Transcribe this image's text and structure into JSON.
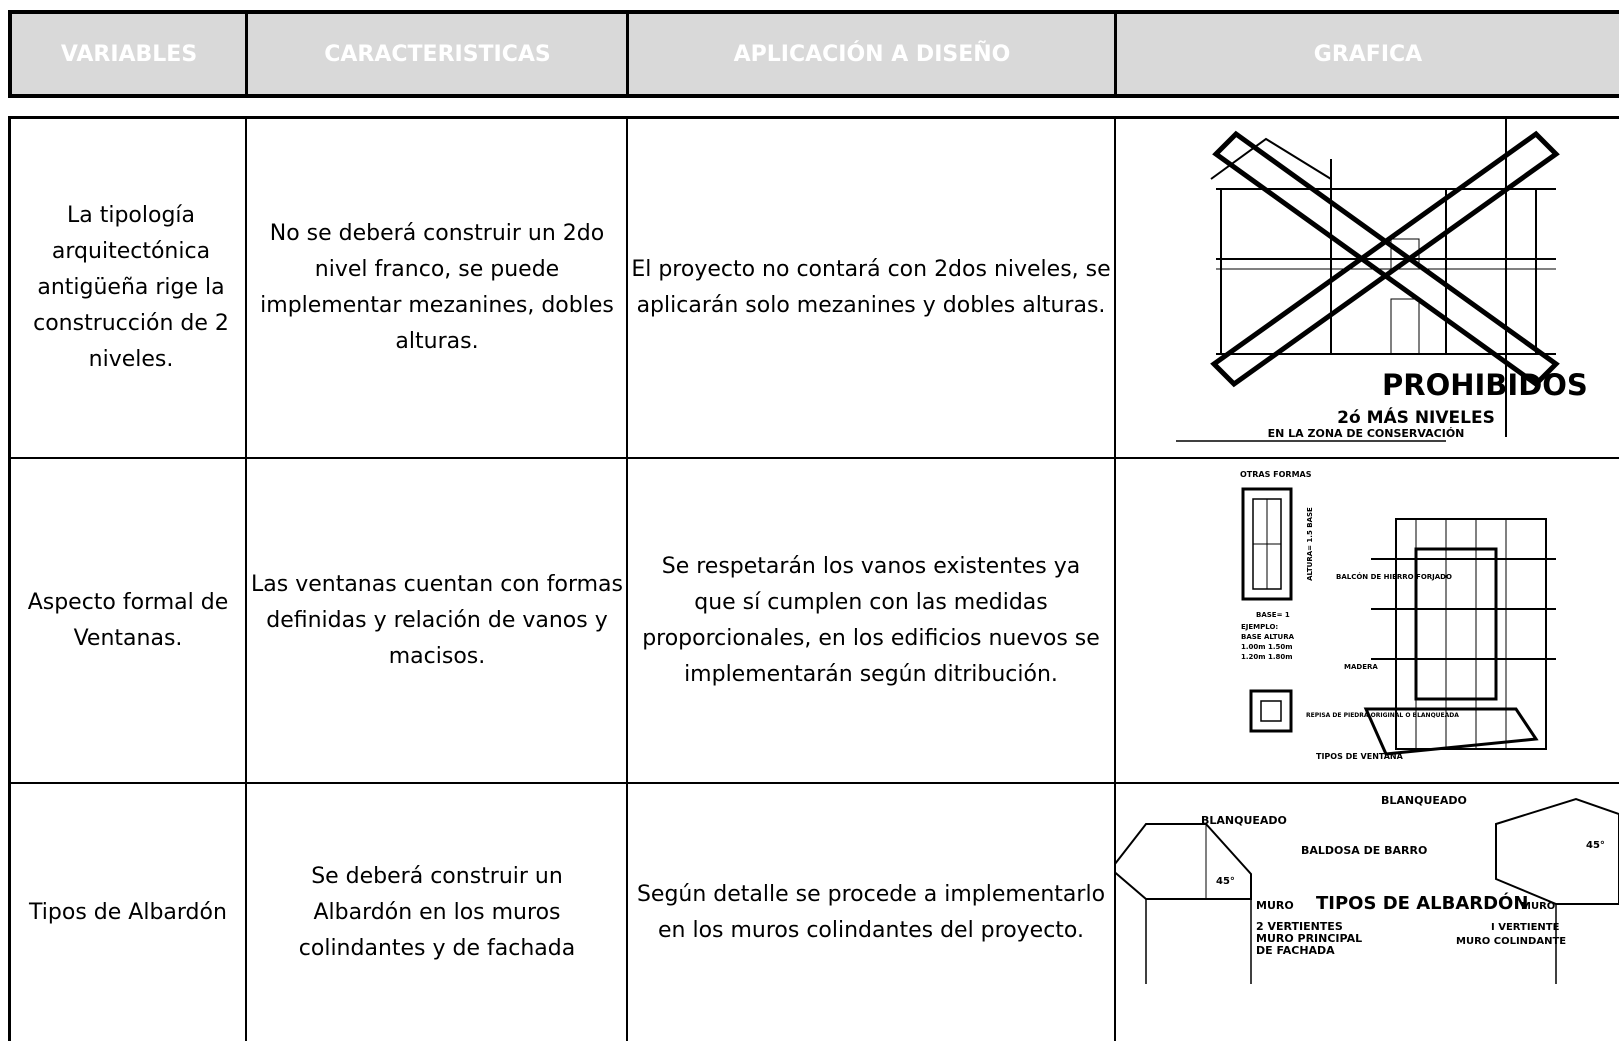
{
  "header": [
    "VARIABLES",
    "CARACTERISTICAS",
    "APLICACIÓN A DISEÑO",
    "GRAFICA"
  ],
  "rows": [
    {
      "variable": "La tipología arquitectónica antigüeña rige la construcción de 2 niveles.",
      "caracteristicas": "No se deberá construir un 2do nivel franco, se puede implementar mezanines, dobles alturas.",
      "aplicacion": "El proyecto no contará con 2dos niveles, se aplicarán solo mezanines y dobles alturas.",
      "grafica": [
        "PROHIBIDOS",
        "2ó MÁS NIVELES",
        "EN LA ZONA DE CONSERVACIÓN"
      ]
    },
    {
      "variable": "Aspecto formal de Ventanas.",
      "caracteristicas": "Las ventanas cuentan con formas definidas y relación de vanos y macisos.",
      "aplicacion": "Se respetarán los vanos existentes ya que sí cumplen con las medidas proporcionales, en los edificios nuevos se implementarán según ditribución.",
      "grafica": [
        "OTRAS FORMAS",
        "ALTURA= 1.5 BASE",
        "BASE= 1",
        "BALCÓN DE HIERRO FORJADO",
        "EJEMPLO:",
        "BASE   ALTURA",
        "1.00m   1.50m",
        "1.20m   1.80m",
        "MADERA",
        "REPISA DE PIEDRA ORIGINAL O BLANQUEADA",
        "TIPOS DE VENTANA"
      ]
    },
    {
      "variable": "Tipos de Albardón",
      "caracteristicas": "Se deberá construir un Albardón en los muros colindantes y de fachada",
      "aplicacion": "Según detalle se procede a implementarlo en los muros colindantes del proyecto.",
      "grafica": [
        "BLANQUEADO",
        "BLANQUEADO",
        "BALDOSA DE BARRO",
        "45°",
        "45°",
        "MURO",
        "TIPOS DE ALBARDÓN",
        "MURO",
        "2 VERTIENTES",
        "MURO PRINCIPAL",
        "DE FACHADA",
        "I VERTIENTE",
        "MURO COLINDANTE"
      ]
    }
  ]
}
